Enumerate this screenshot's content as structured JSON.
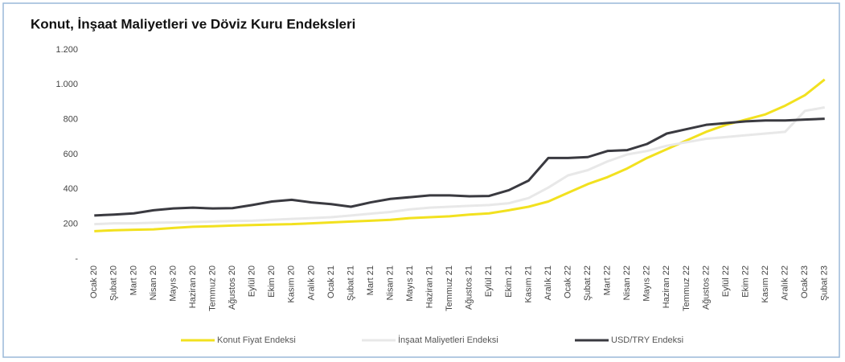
{
  "chart_data": {
    "type": "line",
    "title": "Konut, İnşaat Maliyetleri ve Döviz Kuru Endeksleri",
    "categories": [
      "Ocak 20",
      "Şubat 20",
      "Mart 20",
      "Nisan 20",
      "Mayıs 20",
      "Haziran 20",
      "Temmuz 20",
      "Ağustos 20",
      "Eylül 20",
      "Ekim 20",
      "Kasım 20",
      "Aralık 20",
      "Ocak 21",
      "Şubat 21",
      "Mart 21",
      "Nisan 21",
      "Mayıs 21",
      "Haziran 21",
      "Temmuz 21",
      "Ağustos 21",
      "Eylül 21",
      "Ekim 21",
      "Kasım 21",
      "Aralık 21",
      "Ocak 22",
      "Şubat 22",
      "Mart 22",
      "Nisan 22",
      "Mayıs 22",
      "Haziran 22",
      "Temmuz 22",
      "Ağustos 22",
      "Eylül 22",
      "Ekim 22",
      "Kasım 22",
      "Aralık 22",
      "Ocak 23",
      "Şubat 23"
    ],
    "series": [
      {
        "name": "Konut Fiyat Endeksi",
        "color": "#f2e11f",
        "values": [
          160,
          165,
          168,
          170,
          178,
          185,
          188,
          192,
          195,
          198,
          200,
          205,
          210,
          215,
          220,
          225,
          235,
          240,
          245,
          255,
          262,
          280,
          300,
          330,
          380,
          430,
          470,
          520,
          580,
          630,
          680,
          730,
          770,
          800,
          830,
          880,
          940,
          1030
        ]
      },
      {
        "name": "İnşaat Maliyetleri Endeksi",
        "color": "#e8e8e8",
        "values": [
          200,
          205,
          205,
          208,
          210,
          212,
          215,
          218,
          220,
          225,
          230,
          235,
          240,
          250,
          260,
          270,
          285,
          295,
          300,
          305,
          310,
          320,
          350,
          410,
          480,
          510,
          560,
          600,
          620,
          650,
          670,
          690,
          700,
          710,
          720,
          730,
          850,
          870
        ]
      },
      {
        "name": "USD/TRY Endeksi",
        "color": "#3a3a40",
        "values": [
          250,
          255,
          262,
          280,
          290,
          295,
          290,
          292,
          310,
          330,
          340,
          325,
          315,
          300,
          325,
          345,
          355,
          365,
          365,
          360,
          362,
          395,
          450,
          580,
          580,
          585,
          620,
          625,
          660,
          720,
          745,
          770,
          780,
          790,
          795,
          795,
          800,
          805
        ]
      }
    ],
    "ylim": [
      0,
      1200
    ],
    "yticks": [
      {
        "value": 0,
        "label": "-"
      },
      200,
      400,
      600,
      800,
      {
        "value": 1000,
        "label": "1.000"
      },
      {
        "value": 1200,
        "label": "1.200"
      }
    ]
  }
}
